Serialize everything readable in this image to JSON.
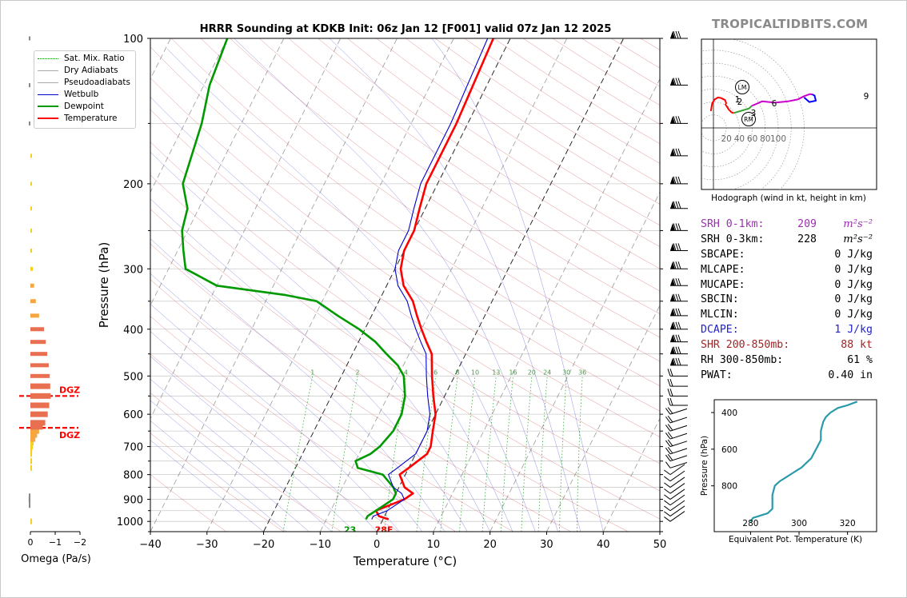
{
  "site_brand": "TROPICALTIDBITS.COM",
  "chart_data": [
    {
      "type": "line",
      "name": "skewt",
      "title": "HRRR Sounding at KDKB Init: 06z Jan 12 [F001] valid 07z Jan 12 2025",
      "xlabel": "Temperature (°C)",
      "ylabel": "Pressure (hPa)",
      "xlim": [
        -40,
        50
      ],
      "ylim": [
        1050,
        100
      ],
      "y_scale": "log",
      "xticks": [
        -40,
        -30,
        -20,
        -10,
        0,
        10,
        20,
        30,
        40,
        50
      ],
      "yticks": [
        100,
        200,
        300,
        400,
        500,
        600,
        700,
        800,
        900,
        1000
      ],
      "legend_position": "top-left",
      "legend": [
        "Sat. Mix. Ratio",
        "Dry Adiabats",
        "Pseudoadiabats",
        "Wetbulb",
        "Dewpoint",
        "Temperature"
      ],
      "colors": {
        "temperature": "#ff0000",
        "dewpoint": "#009900",
        "wetbulb": "#0000cc",
        "dry": "#cc3333",
        "moist": "#3333cc",
        "mix": "#009900",
        "isotherm": "#888888",
        "grid": "#cccccc"
      },
      "mixing_ratio_labels": [
        "1",
        "2",
        "4",
        "6",
        "8",
        "10",
        "13",
        "16",
        "20",
        "24",
        "30",
        "36"
      ],
      "surface_labels": {
        "dewpoint": "23",
        "temperature": "28F"
      },
      "series": [
        {
          "name": "Temperature",
          "x": [
            1,
            -1,
            -2,
            0,
            2,
            3,
            1,
            -1,
            0,
            2,
            2,
            1,
            0,
            -2,
            -4,
            -6,
            -8,
            -10,
            -12,
            -14,
            -17,
            -19,
            -20,
            -20,
            -21,
            -22,
            -22,
            -23
          ],
          "p": [
            990,
            975,
            950,
            925,
            900,
            875,
            850,
            800,
            775,
            725,
            700,
            650,
            600,
            550,
            500,
            450,
            425,
            400,
            375,
            350,
            325,
            300,
            275,
            250,
            225,
            200,
            150,
            100
          ]
        },
        {
          "name": "Dewpoint",
          "x": [
            -3,
            -3,
            -2,
            -1,
            0,
            0,
            -1,
            -4,
            -9,
            -10,
            -8,
            -7,
            -6,
            -6,
            -7,
            -9,
            -11,
            -14,
            -17,
            -21,
            -26,
            -31,
            -37,
            -50,
            -57,
            -59,
            -61,
            -62,
            -65,
            -67,
            -69,
            -70
          ],
          "p": [
            990,
            975,
            950,
            925,
            900,
            875,
            850,
            800,
            775,
            750,
            725,
            700,
            650,
            600,
            550,
            500,
            475,
            450,
            425,
            400,
            375,
            350,
            340,
            325,
            300,
            275,
            250,
            225,
            200,
            150,
            125,
            100
          ]
        },
        {
          "name": "Wetbulb",
          "x": [
            -2,
            -2,
            0,
            1,
            2,
            1,
            -1,
            -3,
            -2,
            0,
            0,
            0,
            -1,
            -3,
            -5,
            -7,
            -9,
            -11,
            -13,
            -15,
            -18,
            -20,
            -21,
            -21,
            -22,
            -23,
            -23,
            -24
          ],
          "p": [
            990,
            975,
            950,
            925,
            900,
            875,
            850,
            800,
            775,
            725,
            700,
            650,
            600,
            550,
            500,
            450,
            425,
            400,
            375,
            350,
            325,
            300,
            275,
            250,
            225,
            200,
            150,
            100
          ]
        }
      ],
      "annotations": [
        "DGZ",
        "DGZ"
      ],
      "dgz_pressures": [
        550,
        640
      ]
    },
    {
      "type": "bar",
      "name": "omega",
      "xlabel": "Omega (Pa/s)",
      "xlim": [
        0,
        -2
      ],
      "xticks": [
        "0",
        "−1",
        "−2"
      ],
      "orientation": "horizontal",
      "p": [
        1000,
        925,
        912,
        900,
        887,
        775,
        750,
        725,
        712,
        700,
        687,
        675,
        662,
        650,
        637,
        625,
        600,
        575,
        550,
        525,
        500,
        475,
        450,
        425,
        400,
        375,
        350,
        325,
        300,
        275,
        250,
        225,
        200,
        175,
        150,
        125,
        100
      ],
      "values": [
        -0.05,
        0.02,
        0.05,
        0.07,
        0.06,
        -0.01,
        -0.02,
        -0.04,
        -0.07,
        -0.1,
        -0.13,
        -0.2,
        -0.27,
        -0.35,
        -0.5,
        -0.6,
        -0.7,
        -0.76,
        -0.82,
        -0.8,
        -0.78,
        -0.74,
        -0.68,
        -0.62,
        -0.55,
        -0.35,
        -0.22,
        -0.15,
        -0.1,
        -0.06,
        -0.05,
        -0.05,
        -0.05,
        0,
        0.05,
        0.05,
        0.03
      ]
    },
    {
      "type": "line",
      "name": "hodograph",
      "xlabel": "Hodograph (wind in kt, height in km)",
      "ring_labels": [
        "20",
        "40",
        "60",
        "80",
        "100"
      ],
      "height_labels": [
        "1",
        "2",
        "3",
        "6",
        "9"
      ],
      "motion_labels": [
        "LM",
        "RM"
      ],
      "segments": [
        {
          "color": "#ff0000",
          "u": [
            -4,
            -2,
            2,
            7,
            12,
            18,
            20
          ],
          "v": [
            26,
            38,
            44,
            47,
            46,
            43,
            37
          ]
        },
        {
          "color": "#ff0000",
          "u": [
            18,
            24,
            28,
            31
          ],
          "v": [
            37,
            28,
            24,
            23
          ]
        },
        {
          "color": "#33a02c",
          "u": [
            31,
            45,
            55,
            59
          ],
          "v": [
            23,
            27,
            30,
            34
          ]
        },
        {
          "color": "#cc00cc",
          "u": [
            59,
            75,
            95,
            115,
            130,
            140,
            148,
            152
          ],
          "v": [
            34,
            41,
            39,
            41,
            44,
            49,
            52,
            52
          ]
        },
        {
          "color": "#0000ff",
          "u": [
            152,
            156,
            158,
            148,
            140
          ],
          "v": [
            52,
            50,
            42,
            40,
            47
          ]
        }
      ]
    },
    {
      "type": "line",
      "name": "theta-e",
      "xlabel": "Equivalent Pot. Temperature (K)",
      "ylabel": "Pressure (hPa)",
      "xlim": [
        265,
        332
      ],
      "ylim": [
        1050,
        330
      ],
      "xticks": [
        280,
        300,
        320
      ],
      "yticks": [
        400,
        600,
        800
      ],
      "x": [
        280,
        281,
        287,
        289,
        289,
        289,
        290,
        292,
        295,
        298,
        301,
        303,
        305,
        306,
        307,
        308,
        309,
        309,
        310,
        311,
        313,
        316,
        320,
        324
      ],
      "p": [
        995,
        975,
        950,
        925,
        900,
        850,
        800,
        775,
        750,
        725,
        700,
        675,
        650,
        625,
        600,
        575,
        550,
        500,
        450,
        425,
        400,
        375,
        360,
        340
      ]
    }
  ],
  "parameters": [
    {
      "label": "SRH 0-1km:",
      "value": "209",
      "unit": "m²s⁻²",
      "color": "#9b30b0"
    },
    {
      "label": "SRH 0-3km:",
      "value": "228",
      "unit": "m²s⁻²",
      "color": "#000000"
    },
    {
      "label": "SBCAPE:",
      "value": "0 J/kg",
      "color": "#000000"
    },
    {
      "label": "MLCAPE:",
      "value": "0 J/kg",
      "color": "#000000"
    },
    {
      "label": "MUCAPE:",
      "value": "0 J/kg",
      "color": "#000000"
    },
    {
      "label": "SBCIN:",
      "value": "0 J/kg",
      "color": "#000000"
    },
    {
      "label": "MLCIN:",
      "value": "0 J/kg",
      "color": "#000000"
    },
    {
      "label": "DCAPE:",
      "value": "1 J/kg",
      "color": "#2222cc"
    },
    {
      "label": "SHR 200-850mb:",
      "value": "88 kt",
      "color": "#aa2222"
    },
    {
      "label": "RH 300-850mb:",
      "value": "61 %",
      "color": "#000000"
    },
    {
      "label": "PWAT:",
      "value": "0.40 in",
      "color": "#000000"
    }
  ]
}
